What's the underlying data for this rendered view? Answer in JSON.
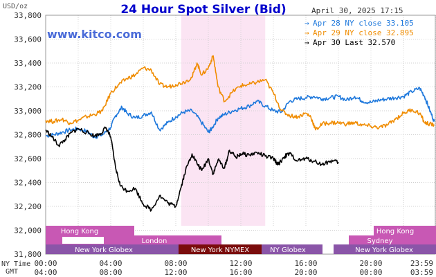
{
  "header": {
    "title": "24 Hour Spot Silver (Bid)",
    "unit_label": "USD/oz",
    "timestamp": "April 30, 2025 17:15",
    "watermark": "www.kitco.com"
  },
  "legend": [
    {
      "name": "Apr 28 NY close 33.105",
      "color": "#1e78dc"
    },
    {
      "name": "Apr 29 NY close 32.895",
      "color": "#f08c00"
    },
    {
      "name": "Apr 30 Last 32.570",
      "color": "#000000"
    }
  ],
  "x_rows": {
    "ny_label": "NY Time",
    "gmt_label": "GMT",
    "ny_ticks": [
      "00:00",
      "04:00",
      "08:00",
      "12:00",
      "16:00",
      "20:00",
      "23:59"
    ],
    "gmt_ticks": [
      "04:00",
      "08:00",
      "12:00",
      "16:00",
      "20:00",
      "00:00",
      "03:59"
    ]
  },
  "sessions": {
    "hong_kong_left": "Hong Kong",
    "hong_kong_right": "Hong Kong",
    "sydney": "Sydney",
    "london": "London",
    "ny_globex_left": "New York Globex",
    "ny_nymex": "New York NYMEX",
    "ny_globex_mid": "NY Globex",
    "ny_globex_right": "New York Globex"
  },
  "colors": {
    "nymex_shade": "#fbe4f3",
    "session_pink": "#c858b4",
    "session_purple": "#8a55a8",
    "session_darkred": "#7a0c0c",
    "grid": "#d0d0d0"
  },
  "chart_data": {
    "type": "line",
    "x_unit": "hours since 00:00 NY time",
    "xlim": [
      0,
      24
    ],
    "ylim": [
      31.8,
      33.8
    ],
    "y_ticks": [
      "33,800",
      "33,600",
      "33,400",
      "33,200",
      "33,000",
      "32,800",
      "32,600",
      "32,400",
      "32,200",
      "32,000",
      "31,800"
    ],
    "grid": "dotted",
    "series": [
      {
        "name": "Apr 28 NY close 33.105",
        "color": "#1e78dc",
        "points": [
          [
            0,
            32.79
          ],
          [
            0.5,
            32.8
          ],
          [
            1,
            32.82
          ],
          [
            1.5,
            32.84
          ],
          [
            2,
            32.85
          ],
          [
            2.5,
            32.83
          ],
          [
            3,
            32.78
          ],
          [
            3.5,
            32.8
          ],
          [
            4,
            32.86
          ],
          [
            4.3,
            32.96
          ],
          [
            4.7,
            33.03
          ],
          [
            5,
            32.98
          ],
          [
            5.5,
            32.94
          ],
          [
            6,
            32.96
          ],
          [
            6.5,
            32.99
          ],
          [
            7,
            32.84
          ],
          [
            7.5,
            32.9
          ],
          [
            8,
            32.95
          ],
          [
            8.5,
            32.99
          ],
          [
            9,
            33.0
          ],
          [
            9.5,
            32.92
          ],
          [
            10,
            32.82
          ],
          [
            10.2,
            32.85
          ],
          [
            10.6,
            32.94
          ],
          [
            11,
            32.97
          ],
          [
            11.5,
            33.0
          ],
          [
            12,
            33.02
          ],
          [
            12.5,
            33.04
          ],
          [
            13,
            33.08
          ],
          [
            13.5,
            33.04
          ],
          [
            14,
            33.0
          ],
          [
            14.5,
            32.99
          ],
          [
            15,
            33.08
          ],
          [
            15.5,
            33.1
          ],
          [
            16,
            33.11
          ],
          [
            16.5,
            33.12
          ],
          [
            17,
            33.1
          ],
          [
            17.5,
            33.11
          ],
          [
            18,
            33.12
          ],
          [
            18.5,
            33.09
          ],
          [
            19,
            33.12
          ],
          [
            19.5,
            33.08
          ],
          [
            20,
            33.07
          ],
          [
            20.5,
            33.09
          ],
          [
            21,
            33.1
          ],
          [
            21.5,
            33.11
          ],
          [
            22,
            33.12
          ],
          [
            22.5,
            33.16
          ],
          [
            23,
            33.19
          ],
          [
            23.3,
            33.12
          ],
          [
            23.6,
            33.01
          ],
          [
            23.9,
            32.91
          ]
        ]
      },
      {
        "name": "Apr 29 NY close 32.895",
        "color": "#f08c00",
        "points": [
          [
            0,
            32.92
          ],
          [
            0.5,
            32.91
          ],
          [
            1,
            32.93
          ],
          [
            1.5,
            32.9
          ],
          [
            2,
            32.92
          ],
          [
            2.5,
            32.95
          ],
          [
            3,
            32.97
          ],
          [
            3.5,
            33.0
          ],
          [
            4,
            33.15
          ],
          [
            4.5,
            33.22
          ],
          [
            5,
            33.27
          ],
          [
            5.5,
            33.3
          ],
          [
            6,
            33.36
          ],
          [
            6.5,
            33.34
          ],
          [
            7,
            33.22
          ],
          [
            7.5,
            33.2
          ],
          [
            8,
            33.22
          ],
          [
            8.5,
            33.24
          ],
          [
            9,
            33.28
          ],
          [
            9.3,
            33.4
          ],
          [
            9.6,
            33.3
          ],
          [
            10,
            33.36
          ],
          [
            10.3,
            33.46
          ],
          [
            10.6,
            33.2
          ],
          [
            11,
            33.08
          ],
          [
            11.5,
            33.16
          ],
          [
            12,
            33.21
          ],
          [
            12.5,
            33.22
          ],
          [
            13,
            33.24
          ],
          [
            13.5,
            33.26
          ],
          [
            14,
            33.15
          ],
          [
            14.5,
            33.0
          ],
          [
            15,
            32.96
          ],
          [
            15.5,
            32.95
          ],
          [
            16,
            32.98
          ],
          [
            16.3,
            32.95
          ],
          [
            16.6,
            32.84
          ],
          [
            17,
            32.89
          ],
          [
            17.5,
            32.9
          ],
          [
            18,
            32.9
          ],
          [
            18.5,
            32.89
          ],
          [
            19,
            32.9
          ],
          [
            19.5,
            32.88
          ],
          [
            20,
            32.87
          ],
          [
            20.5,
            32.86
          ],
          [
            21,
            32.88
          ],
          [
            21.5,
            32.93
          ],
          [
            22,
            32.98
          ],
          [
            22.5,
            33.01
          ],
          [
            23,
            32.98
          ],
          [
            23.3,
            32.9
          ],
          [
            23.6,
            32.89
          ],
          [
            23.9,
            32.88
          ]
        ]
      },
      {
        "name": "Apr 30 Last 32.570",
        "color": "#000000",
        "points": [
          [
            0,
            32.84
          ],
          [
            0.4,
            32.78
          ],
          [
            0.8,
            32.71
          ],
          [
            1.2,
            32.76
          ],
          [
            1.6,
            32.82
          ],
          [
            2,
            32.85
          ],
          [
            2.5,
            32.82
          ],
          [
            3,
            32.79
          ],
          [
            3.4,
            32.81
          ],
          [
            3.7,
            32.86
          ],
          [
            4,
            32.78
          ],
          [
            4.3,
            32.52
          ],
          [
            4.6,
            32.37
          ],
          [
            5,
            32.33
          ],
          [
            5.5,
            32.35
          ],
          [
            6,
            32.22
          ],
          [
            6.5,
            32.17
          ],
          [
            7,
            32.29
          ],
          [
            7.5,
            32.23
          ],
          [
            8,
            32.2
          ],
          [
            8.3,
            32.35
          ],
          [
            8.6,
            32.5
          ],
          [
            9,
            32.64
          ],
          [
            9.3,
            32.56
          ],
          [
            9.6,
            32.5
          ],
          [
            10,
            32.6
          ],
          [
            10.3,
            32.47
          ],
          [
            10.6,
            32.59
          ],
          [
            11,
            32.52
          ],
          [
            11.3,
            32.67
          ],
          [
            11.7,
            32.61
          ],
          [
            12,
            32.64
          ],
          [
            12.5,
            32.63
          ],
          [
            13,
            32.65
          ],
          [
            13.5,
            32.62
          ],
          [
            14,
            32.6
          ],
          [
            14.3,
            32.55
          ],
          [
            14.7,
            32.62
          ],
          [
            15,
            32.64
          ],
          [
            15.5,
            32.58
          ],
          [
            16,
            32.6
          ],
          [
            16.5,
            32.58
          ],
          [
            17,
            32.55
          ],
          [
            17.5,
            32.58
          ],
          [
            18,
            32.57
          ]
        ]
      }
    ]
  }
}
